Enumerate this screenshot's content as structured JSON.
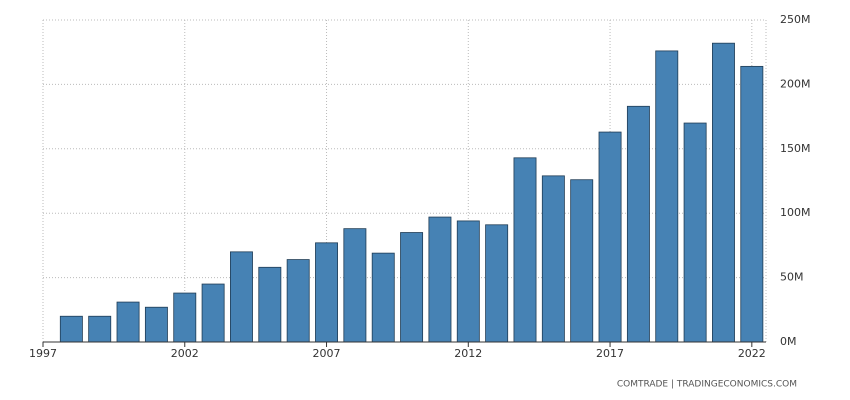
{
  "chart_data": {
    "type": "bar",
    "x": [
      1998,
      1999,
      2000,
      2001,
      2002,
      2003,
      2004,
      2005,
      2006,
      2007,
      2008,
      2009,
      2010,
      2011,
      2012,
      2013,
      2014,
      2015,
      2016,
      2017,
      2018,
      2019,
      2020,
      2021,
      2022
    ],
    "values": [
      20000000,
      20000000,
      31000000,
      27000000,
      38000000,
      45000000,
      70000000,
      58000000,
      64000000,
      77000000,
      88000000,
      69000000,
      85000000,
      97000000,
      94000000,
      91000000,
      143000000,
      129000000,
      126000000,
      163000000,
      183000000,
      226000000,
      170000000,
      232000000,
      214000000
    ],
    "color": "#4682b4",
    "xlim": [
      1997,
      2022.5
    ],
    "xticks": [
      1997,
      2002,
      2007,
      2012,
      2017,
      2022
    ],
    "ylim": [
      0,
      250000000
    ],
    "yticks": [
      {
        "value": 0,
        "label": "0M"
      },
      {
        "value": 50000000,
        "label": "50M"
      },
      {
        "value": 100000000,
        "label": "100M"
      },
      {
        "value": 150000000,
        "label": "150M"
      },
      {
        "value": 200000000,
        "label": "200M"
      },
      {
        "value": 250000000,
        "label": "250M"
      }
    ],
    "grid": true,
    "source": "COMTRADE | TRADINGECONOMICS.COM"
  }
}
